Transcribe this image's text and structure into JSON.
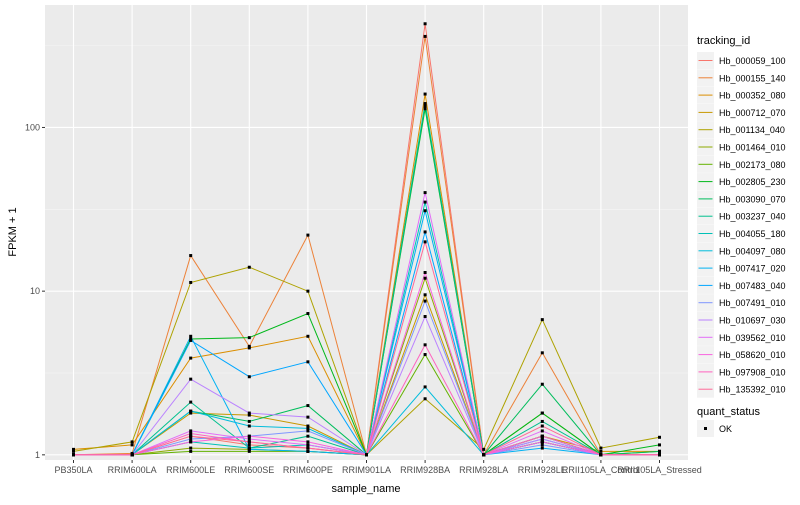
{
  "chart_data": {
    "type": "line",
    "xlabel": "sample_name",
    "ylabel": "FPKM + 1",
    "y_scale": "log10",
    "ylim": [
      0.93,
      560
    ],
    "y_ticks": [
      1,
      10,
      100
    ],
    "grid": true,
    "legend_position": "right",
    "legend_title": "tracking_id",
    "shape_legend_title": "quant_status",
    "shape_legend_items": [
      "OK"
    ],
    "categories": [
      "PB350LA",
      "RRIM600LA",
      "RRIM600LE",
      "RRIM600SE",
      "RRIM600PE",
      "RRIM901LA",
      "RRIM928BA",
      "RRIM928LA",
      "RRIM928LE",
      "RRII105LA_Control",
      "RRII105LA_Stressed"
    ],
    "series": [
      {
        "name": "Hb_000059_100",
        "color": "#F8766D",
        "values": [
          1.0,
          1.0,
          1.3,
          1.15,
          1.1,
          1.0,
          430,
          1.0,
          1.3,
          1.0,
          1.0
        ]
      },
      {
        "name": "Hb_000155_140",
        "color": "#EC8239",
        "values": [
          1.0,
          1.02,
          16.5,
          4.6,
          22,
          1.0,
          360,
          1.0,
          4.2,
          1.0,
          1.0
        ]
      },
      {
        "name": "Hb_000352_080",
        "color": "#DB8E00",
        "values": [
          1.08,
          1.15,
          3.9,
          4.5,
          5.3,
          1.0,
          160,
          1.0,
          1.3,
          1.05,
          1.05
        ]
      },
      {
        "name": "Hb_000712_070",
        "color": "#C79800",
        "values": [
          1.0,
          1.0,
          1.8,
          1.75,
          1.5,
          1.0,
          9.5,
          1.0,
          1.2,
          1.0,
          1.0
        ]
      },
      {
        "name": "Hb_001134_040",
        "color": "#AEA200",
        "values": [
          1.05,
          1.2,
          11.3,
          14.0,
          10.0,
          1.0,
          2.2,
          1.08,
          6.7,
          1.1,
          1.28
        ]
      },
      {
        "name": "Hb_001464_010",
        "color": "#8FAA00",
        "values": [
          1.0,
          1.0,
          1.1,
          1.08,
          1.05,
          1.0,
          12,
          1.0,
          1.2,
          1.0,
          1.0
        ]
      },
      {
        "name": "Hb_002173_080",
        "color": "#64B200",
        "values": [
          1.0,
          1.0,
          1.05,
          1.05,
          1.05,
          1.0,
          4.1,
          1.0,
          1.8,
          1.0,
          1.05
        ]
      },
      {
        "name": "Hb_002805_230",
        "color": "#00B81B",
        "values": [
          1.0,
          1.0,
          5.1,
          5.2,
          7.3,
          1.0,
          130,
          1.0,
          1.8,
          1.0,
          1.15
        ]
      },
      {
        "name": "Hb_003090_070",
        "color": "#00BD5C",
        "values": [
          1.0,
          1.0,
          1.85,
          1.6,
          2.0,
          1.0,
          135,
          1.0,
          2.7,
          1.0,
          1.05
        ]
      },
      {
        "name": "Hb_003237_040",
        "color": "#00C08E",
        "values": [
          1.0,
          1.0,
          2.1,
          1.1,
          1.3,
          1.0,
          140,
          1.0,
          1.6,
          1.0,
          1.0
        ]
      },
      {
        "name": "Hb_004055_180",
        "color": "#00C1B7",
        "values": [
          1.0,
          1.0,
          1.2,
          1.1,
          1.15,
          1.0,
          35,
          1.0,
          1.3,
          1.0,
          1.0
        ]
      },
      {
        "name": "Hb_004097_080",
        "color": "#00BDDC",
        "values": [
          1.0,
          1.0,
          1.85,
          1.5,
          1.45,
          1.0,
          2.6,
          1.0,
          1.2,
          1.0,
          1.0
        ]
      },
      {
        "name": "Hb_007417_020",
        "color": "#00B2F3",
        "values": [
          1.0,
          1.0,
          5.3,
          1.08,
          1.05,
          1.0,
          31,
          1.0,
          1.1,
          1.0,
          1.0
        ]
      },
      {
        "name": "Hb_007483_040",
        "color": "#00A6FF",
        "values": [
          1.0,
          1.0,
          5.0,
          3.0,
          3.7,
          1.0,
          23,
          1.0,
          1.25,
          1.0,
          1.0
        ]
      },
      {
        "name": "Hb_007491_010",
        "color": "#7F96FF",
        "values": [
          1.0,
          1.0,
          1.25,
          1.3,
          1.4,
          1.0,
          8.7,
          1.0,
          1.15,
          1.0,
          1.0
        ]
      },
      {
        "name": "Hb_010697_030",
        "color": "#BB83FF",
        "values": [
          1.0,
          1.0,
          2.9,
          1.8,
          1.7,
          1.0,
          7.0,
          1.0,
          1.25,
          1.0,
          1.0
        ]
      },
      {
        "name": "Hb_039562_010",
        "color": "#E26EF7",
        "values": [
          1.0,
          1.0,
          1.4,
          1.25,
          1.15,
          1.0,
          40,
          1.0,
          1.4,
          1.0,
          1.0
        ]
      },
      {
        "name": "Hb_058620_010",
        "color": "#F863DF",
        "values": [
          1.0,
          1.0,
          1.2,
          1.3,
          1.2,
          1.0,
          13,
          1.0,
          1.2,
          1.0,
          1.0
        ]
      },
      {
        "name": "Hb_097908_010",
        "color": "#FF62BF",
        "values": [
          1.0,
          1.0,
          1.35,
          1.2,
          1.1,
          1.0,
          4.7,
          1.0,
          1.3,
          1.0,
          1.0
        ]
      },
      {
        "name": "Hb_135392_010",
        "color": "#FF6A98",
        "values": [
          1.0,
          1.0,
          1.3,
          1.2,
          1.1,
          1.0,
          20,
          1.0,
          1.5,
          1.0,
          1.0
        ]
      }
    ]
  }
}
